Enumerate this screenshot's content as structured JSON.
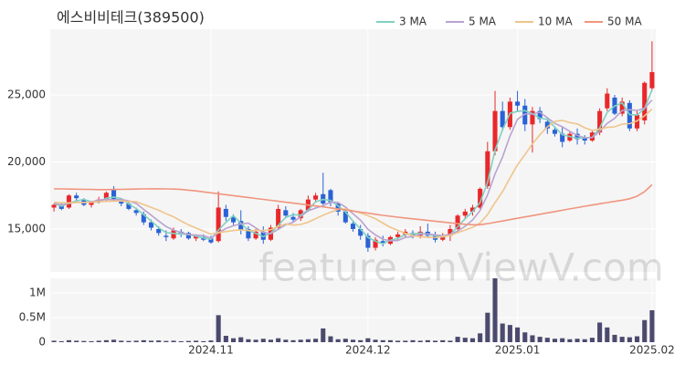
{
  "chart_data": {
    "type": "candlestick",
    "title": "에스비비테크(389500)",
    "watermark": "feature.enViewV.com",
    "categories": [
      null,
      null,
      null,
      null,
      null,
      null,
      null,
      null,
      null,
      null,
      null,
      null,
      null,
      null,
      null,
      null,
      null,
      null,
      null,
      null,
      null,
      "2024.11",
      null,
      null,
      null,
      null,
      null,
      null,
      null,
      null,
      null,
      null,
      null,
      null,
      null,
      null,
      null,
      null,
      null,
      null,
      null,
      null,
      "2024.12",
      null,
      null,
      null,
      null,
      null,
      null,
      null,
      null,
      null,
      null,
      null,
      null,
      null,
      null,
      null,
      null,
      null,
      null,
      null,
      "2025.01",
      null,
      null,
      null,
      null,
      null,
      null,
      null,
      null,
      null,
      null,
      null,
      null,
      null,
      null,
      null,
      null,
      null,
      "2025.02"
    ],
    "open": [
      16600,
      16800,
      16600,
      17500,
      17200,
      16800,
      17000,
      17200,
      17900,
      17100,
      16900,
      16400,
      16100,
      15500,
      15000,
      14500,
      14300,
      14800,
      14700,
      14300,
      14400,
      14300,
      14100,
      16500,
      15900,
      15600,
      15000,
      14300,
      14800,
      14200,
      15100,
      16400,
      15900,
      15800,
      16400,
      17200,
      17600,
      17900,
      16900,
      16300,
      15400,
      15000,
      14500,
      13600,
      14100,
      13900,
      14400,
      14600,
      14700,
      14500,
      14800,
      14500,
      14200,
      14500,
      15000,
      16000,
      16300,
      16600,
      18200,
      20800,
      23800,
      22600,
      24500,
      24200,
      22800,
      23800,
      23000,
      22400,
      22100,
      21600,
      22100,
      21800,
      21600,
      22200,
      24000,
      24800,
      23600,
      24400,
      22500,
      23100,
      25500
    ],
    "high": [
      16900,
      17000,
      17600,
      17700,
      17300,
      17100,
      17400,
      17800,
      18200,
      17300,
      17000,
      16600,
      16300,
      15700,
      15200,
      14900,
      15100,
      15000,
      14800,
      14600,
      14600,
      14500,
      17800,
      16800,
      16100,
      16400,
      15200,
      15000,
      15200,
      15300,
      16800,
      16700,
      16200,
      16500,
      17500,
      17700,
      19200,
      18000,
      17000,
      16500,
      15600,
      15300,
      14700,
      14400,
      14500,
      14500,
      14800,
      15000,
      14900,
      15200,
      15400,
      14800,
      14700,
      15300,
      16100,
      16500,
      16800,
      18100,
      21500,
      25300,
      24500,
      24800,
      25300,
      24700,
      24100,
      24100,
      23300,
      22600,
      22600,
      22300,
      22500,
      22000,
      22400,
      24000,
      25500,
      25000,
      24800,
      24600,
      23800,
      26000,
      29000
    ],
    "low": [
      16300,
      16400,
      16500,
      17100,
      16700,
      16600,
      16900,
      17100,
      17100,
      16700,
      16400,
      16000,
      15300,
      14900,
      14500,
      14100,
      14200,
      14400,
      14200,
      14100,
      14100,
      13900,
      14000,
      15600,
      15300,
      14600,
      14100,
      14200,
      13900,
      14100,
      15000,
      15800,
      15500,
      15600,
      16300,
      17000,
      16800,
      16700,
      16000,
      15400,
      14800,
      14200,
      13300,
      13400,
      13700,
      13800,
      14200,
      14400,
      14300,
      14300,
      14400,
      14000,
      14100,
      14100,
      14900,
      15700,
      16000,
      16500,
      18000,
      20500,
      22300,
      22400,
      23800,
      22300,
      20700,
      22900,
      22100,
      21900,
      21100,
      21500,
      21300,
      21300,
      21500,
      22000,
      23800,
      23500,
      23400,
      22300,
      22300,
      22800,
      25300
    ],
    "close": [
      16800,
      16500,
      17500,
      17300,
      16800,
      17000,
      17200,
      17700,
      17200,
      16900,
      16500,
      16200,
      15500,
      15100,
      14700,
      14400,
      14900,
      14600,
      14300,
      14500,
      14200,
      14000,
      16600,
      15900,
      15500,
      14900,
      14300,
      14800,
      14200,
      15100,
      16500,
      16000,
      15700,
      16400,
      17200,
      17500,
      16900,
      17000,
      16300,
      15500,
      15000,
      14500,
      13600,
      14200,
      13900,
      14400,
      14600,
      14800,
      14500,
      14800,
      14500,
      14200,
      14500,
      15000,
      16000,
      16300,
      16600,
      18000,
      20800,
      23800,
      22600,
      24500,
      24200,
      22800,
      23800,
      23200,
      22500,
      22100,
      21500,
      22100,
      21700,
      21600,
      22200,
      23800,
      25100,
      23600,
      24500,
      22500,
      23500,
      25900,
      26700
    ],
    "up_color": "#e8282b",
    "down_color": "#2a62d6",
    "ylim": [
      11800,
      29900
    ],
    "yticks": [
      {
        "value": 15000,
        "label": "15,000"
      },
      {
        "value": 20000,
        "label": "20,000"
      },
      {
        "value": 25000,
        "label": "25,000"
      }
    ],
    "grid": true,
    "lines": [
      {
        "name": "3 MA",
        "color": "#7fd1c1",
        "values": [
          16900,
          16700,
          16930,
          17100,
          17200,
          17030,
          17000,
          17300,
          17370,
          17270,
          16870,
          16530,
          16070,
          15600,
          15100,
          14730,
          14670,
          14630,
          14600,
          14470,
          14330,
          14230,
          14930,
          15500,
          16000,
          15430,
          14900,
          14670,
          14430,
          14700,
          15270,
          15870,
          16070,
          16030,
          16430,
          17030,
          17200,
          17130,
          16730,
          16270,
          15600,
          15000,
          14370,
          14100,
          13900,
          14170,
          14300,
          14600,
          14630,
          14700,
          14600,
          14500,
          14400,
          14570,
          15170,
          15770,
          16300,
          16970,
          18470,
          20870,
          22400,
          23630,
          23770,
          23830,
          23600,
          23270,
          23170,
          22600,
          22030,
          21900,
          21770,
          21800,
          21830,
          22530,
          23700,
          24170,
          24400,
          23530,
          23500,
          23970,
          25370
        ]
      },
      {
        "name": "5 MA",
        "color": "#b9a3d0",
        "values": [
          16900,
          16800,
          16900,
          17000,
          16980,
          17020,
          17160,
          17200,
          17180,
          17200,
          17100,
          16900,
          16460,
          16040,
          15600,
          15180,
          14920,
          14740,
          14580,
          14540,
          14500,
          14320,
          14720,
          15040,
          15240,
          15380,
          15440,
          15080,
          14740,
          14660,
          14980,
          15320,
          15500,
          15940,
          16360,
          16560,
          16740,
          17000,
          16980,
          16640,
          16140,
          15660,
          14980,
          14560,
          14240,
          14120,
          14140,
          14380,
          14440,
          14620,
          14640,
          14560,
          14500,
          14600,
          14840,
          15200,
          15680,
          16380,
          17540,
          19100,
          20360,
          21940,
          23180,
          23580,
          23580,
          23700,
          23300,
          22880,
          22620,
          22280,
          21980,
          21800,
          21820,
          22280,
          22880,
          23260,
          23840,
          23900,
          23840,
          24000,
          24620
        ]
      },
      {
        "name": "10 MA",
        "color": "#f0c48a",
        "values": [
          17000,
          16950,
          16950,
          16980,
          16980,
          17000,
          17030,
          17060,
          17080,
          17090,
          17060,
          17030,
          16830,
          16610,
          16400,
          16140,
          15910,
          15600,
          15310,
          15070,
          14840,
          14620,
          14730,
          14810,
          14890,
          14940,
          14880,
          14900,
          14890,
          14950,
          15180,
          15380,
          15290,
          15340,
          15510,
          15770,
          16030,
          16250,
          16460,
          16500,
          16350,
          16200,
          15990,
          15770,
          15440,
          15130,
          14900,
          14680,
          14500,
          14430,
          14380,
          14350,
          14440,
          14520,
          14730,
          14920,
          15120,
          15440,
          16070,
          16970,
          17780,
          18810,
          19780,
          20560,
          21340,
          22030,
          22620,
          23030,
          23100,
          22930,
          22840,
          22550,
          22350,
          22450,
          22580,
          22620,
          22820,
          22860,
          23060,
          23440,
          23940
        ]
      },
      {
        "name": "50 MA",
        "color": "#f0957f",
        "values": [
          18000,
          17990,
          17980,
          17970,
          17960,
          17950,
          17940,
          17940,
          17950,
          17960,
          17970,
          17980,
          17990,
          18000,
          18000,
          17990,
          17980,
          17950,
          17900,
          17840,
          17770,
          17700,
          17630,
          17560,
          17490,
          17420,
          17350,
          17280,
          17210,
          17140,
          17070,
          17000,
          16930,
          16860,
          16790,
          16720,
          16650,
          16580,
          16500,
          16420,
          16340,
          16260,
          16180,
          16100,
          16020,
          15950,
          15880,
          15820,
          15760,
          15700,
          15640,
          15580,
          15520,
          15460,
          15400,
          15350,
          15320,
          15320,
          15400,
          15500,
          15600,
          15700,
          15800,
          15900,
          16000,
          16100,
          16200,
          16300,
          16400,
          16500,
          16600,
          16700,
          16790,
          16880,
          16970,
          17060,
          17150,
          17260,
          17450,
          17780,
          18300
        ]
      }
    ],
    "volume": {
      "color": "#4b4a6e",
      "values": [
        30000,
        20000,
        40000,
        30000,
        25000,
        20000,
        30000,
        40000,
        50000,
        30000,
        25000,
        30000,
        40000,
        30000,
        35000,
        25000,
        30000,
        20000,
        25000,
        30000,
        20000,
        35000,
        550000,
        130000,
        80000,
        100000,
        60000,
        50000,
        70000,
        50000,
        80000,
        50000,
        40000,
        50000,
        60000,
        70000,
        280000,
        120000,
        60000,
        70000,
        50000,
        40000,
        80000,
        50000,
        40000,
        40000,
        30000,
        30000,
        40000,
        30000,
        40000,
        30000,
        40000,
        30000,
        110000,
        90000,
        80000,
        180000,
        600000,
        1300000,
        380000,
        350000,
        300000,
        200000,
        140000,
        110000,
        90000,
        70000,
        80000,
        60000,
        70000,
        60000,
        90000,
        400000,
        300000,
        150000,
        110000,
        100000,
        120000,
        450000,
        650000
      ],
      "ylim": [
        0,
        1300000
      ],
      "yticks": [
        0,
        {
          "value": 500000,
          "label": "0.5M"
        },
        {
          "value": 1000000,
          "label": "1M"
        }
      ]
    }
  }
}
